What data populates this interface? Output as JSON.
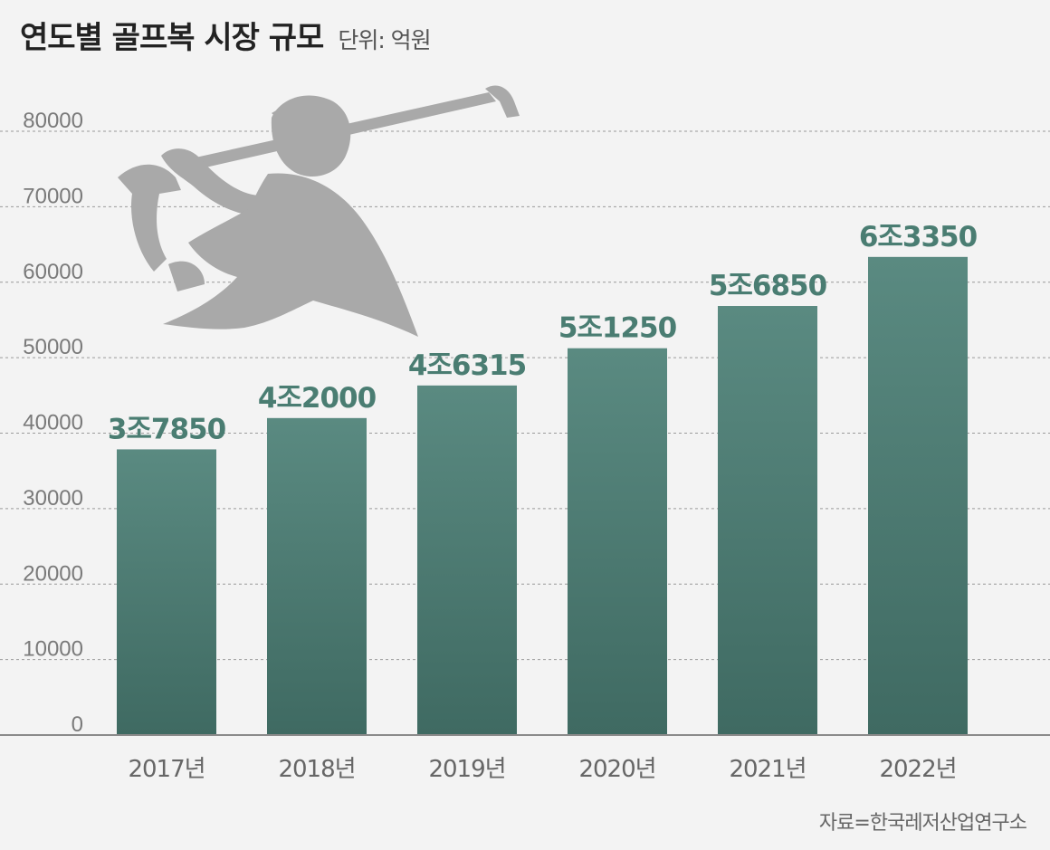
{
  "header": {
    "title": "연도별 골프복 시장 규모",
    "unit": "단위: 억원"
  },
  "source": "자료=한국레저산업연구소",
  "chart_data": {
    "type": "bar",
    "categories": [
      "2017년",
      "2018년",
      "2019년",
      "2020년",
      "2021년",
      "2022년"
    ],
    "values": [
      37850,
      42000,
      46315,
      51250,
      56850,
      63350
    ],
    "data_labels": [
      "3조7850",
      "4조2000",
      "4조6315",
      "5조1250",
      "5조6850",
      "6조3350"
    ],
    "ylim": [
      0,
      80000
    ],
    "yticks": [
      0,
      10000,
      20000,
      30000,
      40000,
      50000,
      60000,
      70000,
      80000
    ],
    "grid": true,
    "colors": {
      "bar_top": "#5a8a81",
      "bar_bottom": "#3f6a62",
      "label": "#4a7d72",
      "grid": "#9a9a9a",
      "silhouette": "#a8a8a8"
    },
    "decoration": "golfer-silhouette-icon"
  }
}
